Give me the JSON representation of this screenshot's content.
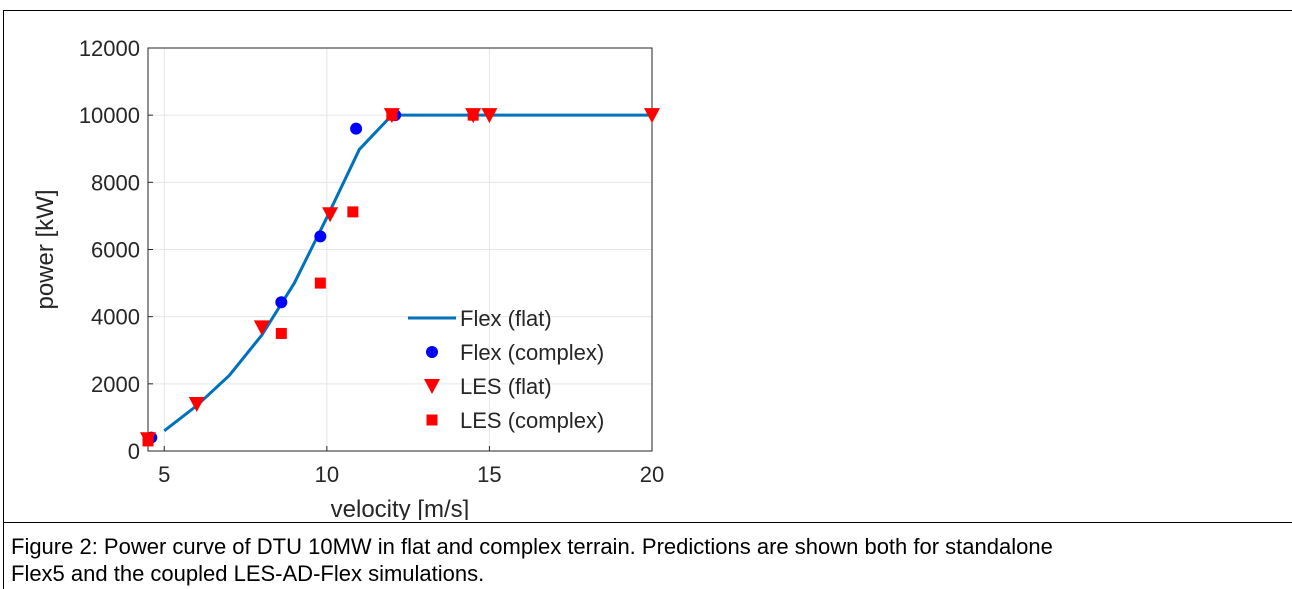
{
  "chart_data": {
    "type": "line",
    "title": "",
    "xlabel": "velocity [m/s]",
    "ylabel": "power [kW]",
    "xlim": [
      4.5,
      20
    ],
    "ylim": [
      0,
      12000
    ],
    "xticks": [
      5,
      10,
      15,
      20
    ],
    "yticks": [
      0,
      2000,
      4000,
      6000,
      8000,
      10000,
      12000
    ],
    "grid": true,
    "legend_position": "bottom-right",
    "series": [
      {
        "name": "Flex (flat)",
        "style": "line",
        "color": "#0072BD",
        "x": [
          5,
          6,
          7,
          8,
          9,
          10,
          11,
          12,
          13,
          14,
          15,
          16,
          17,
          18,
          19,
          20
        ],
        "y": [
          600,
          1350,
          2250,
          3450,
          5000,
          6950,
          8980,
          10000,
          10000,
          10000,
          10000,
          10000,
          10000,
          10000,
          10000,
          10000
        ]
      },
      {
        "name": "Flex (complex)",
        "style": "circle",
        "color": "#0000FF",
        "x": [
          4.6,
          8.6,
          9.8,
          10.9,
          12.1
        ],
        "y": [
          400,
          4430,
          6390,
          9600,
          10000
        ]
      },
      {
        "name": "LES (flat)",
        "style": "triangle-down",
        "color": "#FF0000",
        "x": [
          4.5,
          6,
          8,
          10.1,
          12,
          14.5,
          15,
          20
        ],
        "y": [
          350,
          1400,
          3680,
          7050,
          10000,
          10000,
          10000,
          10000
        ]
      },
      {
        "name": "LES (complex)",
        "style": "square",
        "color": "#FF0000",
        "x": [
          4.5,
          8.6,
          9.8,
          10.8,
          12,
          14.5
        ],
        "y": [
          300,
          3500,
          5000,
          7120,
          10000,
          10000
        ]
      }
    ]
  },
  "caption": {
    "line1": "Figure 2: Power curve of DTU 10MW in flat and complex terrain. Predictions are shown both for standalone",
    "line2": "Flex5 and the coupled LES-AD-Flex simulations."
  }
}
